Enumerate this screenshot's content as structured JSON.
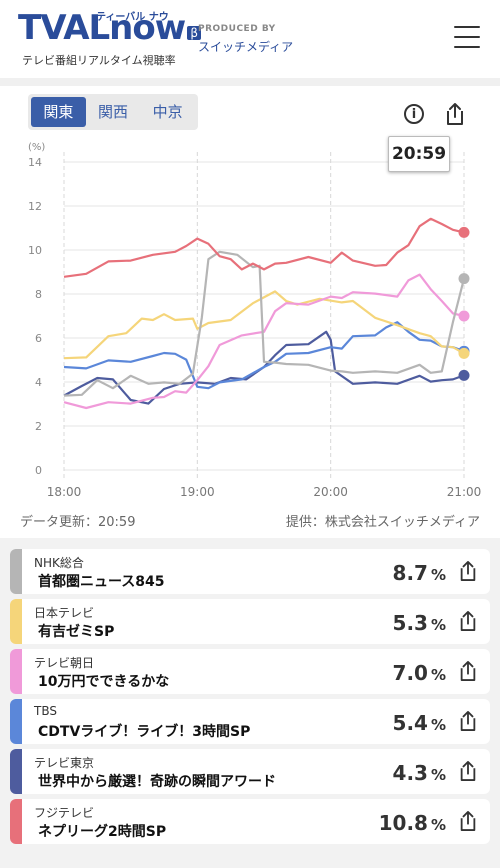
{
  "header": {
    "logo_text": "TVALnow",
    "logo_beta": "β",
    "logo_kana": "ティーバル ナウ",
    "logo_sub": "テレビ番組リアルタイム視聴率",
    "produced_by": "PRODUCED BY",
    "producer": "スイッチメディア"
  },
  "regions": [
    {
      "label": "関東",
      "active": true
    },
    {
      "label": "関西",
      "active": false
    },
    {
      "label": "中京",
      "active": false
    }
  ],
  "info_label": "i",
  "current_time": "20:59",
  "update_text": "データ更新：20:59",
  "provider_text": "提供：株式会社スイッチメディア",
  "colors": {
    "nhk": "#b5b5b5",
    "ntv": "#f5d57a",
    "tva": "#f09ad9",
    "tbs": "#5b87d9",
    "tvt": "#4e5c9e",
    "cx": "#e7707a"
  },
  "chart_data": {
    "type": "line",
    "ylabel": "(%)",
    "ylim": [
      0,
      14
    ],
    "yticks": [
      "0",
      "2",
      "4",
      "6",
      "8",
      "10",
      "12",
      "14"
    ],
    "xticks": [
      "18:00",
      "19:00",
      "20:00",
      "21:00"
    ],
    "xrange_minutes": [
      0,
      180
    ],
    "series": [
      {
        "name": "NHK総合",
        "x": [
          0,
          8,
          15,
          22,
          30,
          38,
          45,
          52,
          58,
          62,
          65,
          70,
          78,
          85,
          88,
          90,
          95,
          100,
          110,
          120,
          125,
          130,
          140,
          150,
          160,
          165,
          170,
          175,
          180
        ],
        "values": [
          3.3,
          3.5,
          4.0,
          3.8,
          4.2,
          4.0,
          3.9,
          4.0,
          4.3,
          7.0,
          9.5,
          10.0,
          9.7,
          9.3,
          9.2,
          5.0,
          4.8,
          4.9,
          4.7,
          4.6,
          4.4,
          4.5,
          4.4,
          4.5,
          4.7,
          4.5,
          4.4,
          6.8,
          8.7
        ]
      },
      {
        "name": "日本テレビ",
        "x": [
          0,
          10,
          20,
          28,
          35,
          40,
          45,
          50,
          58,
          60,
          65,
          75,
          85,
          95,
          100,
          105,
          115,
          125,
          130,
          140,
          150,
          160,
          165,
          170,
          175,
          180
        ],
        "values": [
          5.0,
          5.2,
          6.0,
          6.3,
          6.8,
          6.9,
          7.0,
          6.9,
          6.8,
          6.5,
          6.6,
          6.9,
          7.5,
          8.2,
          7.6,
          7.6,
          7.7,
          7.7,
          7.6,
          7.0,
          6.5,
          6.3,
          6.0,
          5.7,
          5.5,
          5.3
        ]
      },
      {
        "name": "テレビ朝日",
        "x": [
          0,
          10,
          20,
          30,
          40,
          45,
          50,
          55,
          60,
          65,
          70,
          80,
          90,
          95,
          100,
          110,
          120,
          125,
          130,
          140,
          150,
          155,
          160,
          165,
          170,
          175,
          180
        ],
        "values": [
          3.0,
          2.9,
          3.0,
          3.1,
          3.2,
          3.4,
          3.5,
          3.6,
          4.0,
          4.8,
          5.6,
          6.2,
          6.2,
          7.3,
          7.5,
          7.6,
          7.8,
          7.9,
          8.0,
          8.1,
          7.8,
          8.7,
          8.8,
          8.3,
          7.6,
          7.2,
          7.0
        ]
      },
      {
        "name": "TBS",
        "x": [
          0,
          10,
          20,
          30,
          40,
          45,
          50,
          55,
          60,
          65,
          70,
          80,
          90,
          95,
          100,
          110,
          120,
          125,
          130,
          140,
          145,
          150,
          155,
          160,
          165,
          170,
          175,
          180
        ],
        "values": [
          4.6,
          4.7,
          4.9,
          5.0,
          5.1,
          5.4,
          5.2,
          5.1,
          3.7,
          3.8,
          3.9,
          4.2,
          4.6,
          5.0,
          5.2,
          5.4,
          5.5,
          5.6,
          6.0,
          6.2,
          6.4,
          6.8,
          6.2,
          6.0,
          5.8,
          5.7,
          5.5,
          5.4
        ]
      },
      {
        "name": "テレビ東京",
        "x": [
          0,
          8,
          15,
          22,
          30,
          38,
          45,
          52,
          60,
          68,
          75,
          82,
          90,
          95,
          100,
          110,
          118,
          120,
          122,
          130,
          140,
          150,
          160,
          165,
          170,
          175,
          180
        ],
        "values": [
          3.3,
          3.9,
          4.1,
          4.2,
          3.1,
          3.1,
          3.6,
          4.0,
          3.9,
          4.0,
          4.1,
          4.2,
          4.6,
          5.3,
          5.6,
          5.8,
          6.2,
          6.0,
          4.4,
          4.0,
          3.9,
          4.0,
          4.2,
          4.1,
          4.0,
          4.2,
          4.3
        ]
      },
      {
        "name": "フジテレビ",
        "x": [
          0,
          10,
          20,
          30,
          40,
          50,
          55,
          60,
          65,
          70,
          75,
          80,
          85,
          90,
          95,
          100,
          110,
          120,
          125,
          130,
          140,
          145,
          150,
          155,
          160,
          165,
          170,
          175,
          180
        ],
        "values": [
          8.7,
          9.0,
          9.4,
          9.6,
          9.7,
          10.0,
          10.1,
          10.6,
          10.2,
          9.8,
          9.5,
          9.2,
          9.3,
          9.2,
          9.3,
          9.5,
          9.6,
          9.5,
          9.8,
          9.6,
          9.2,
          9.4,
          9.8,
          10.3,
          11.0,
          11.5,
          11.1,
          11.0,
          10.8
        ]
      }
    ]
  },
  "channels": [
    {
      "name": "NHK総合",
      "program": "首都圏ニュース845",
      "value": "8.7",
      "unit": "%",
      "color": "#b5b5b5"
    },
    {
      "name": "日本テレビ",
      "program": "有吉ゼミSP",
      "value": "5.3",
      "unit": "%",
      "color": "#f5d57a"
    },
    {
      "name": "テレビ朝日",
      "program": "10万円でできるかな",
      "value": "7.0",
      "unit": "%",
      "color": "#f09ad9"
    },
    {
      "name": "TBS",
      "program": "CDTVライブ！ライブ！3時間SP",
      "value": "5.4",
      "unit": "%",
      "color": "#5b87d9"
    },
    {
      "name": "テレビ東京",
      "program": "世界中から厳選！奇跡の瞬間アワード",
      "value": "4.3",
      "unit": "%",
      "color": "#4e5c9e"
    },
    {
      "name": "フジテレビ",
      "program": "ネプリーグ2時間SP",
      "value": "10.8",
      "unit": "%",
      "color": "#e7707a"
    }
  ]
}
